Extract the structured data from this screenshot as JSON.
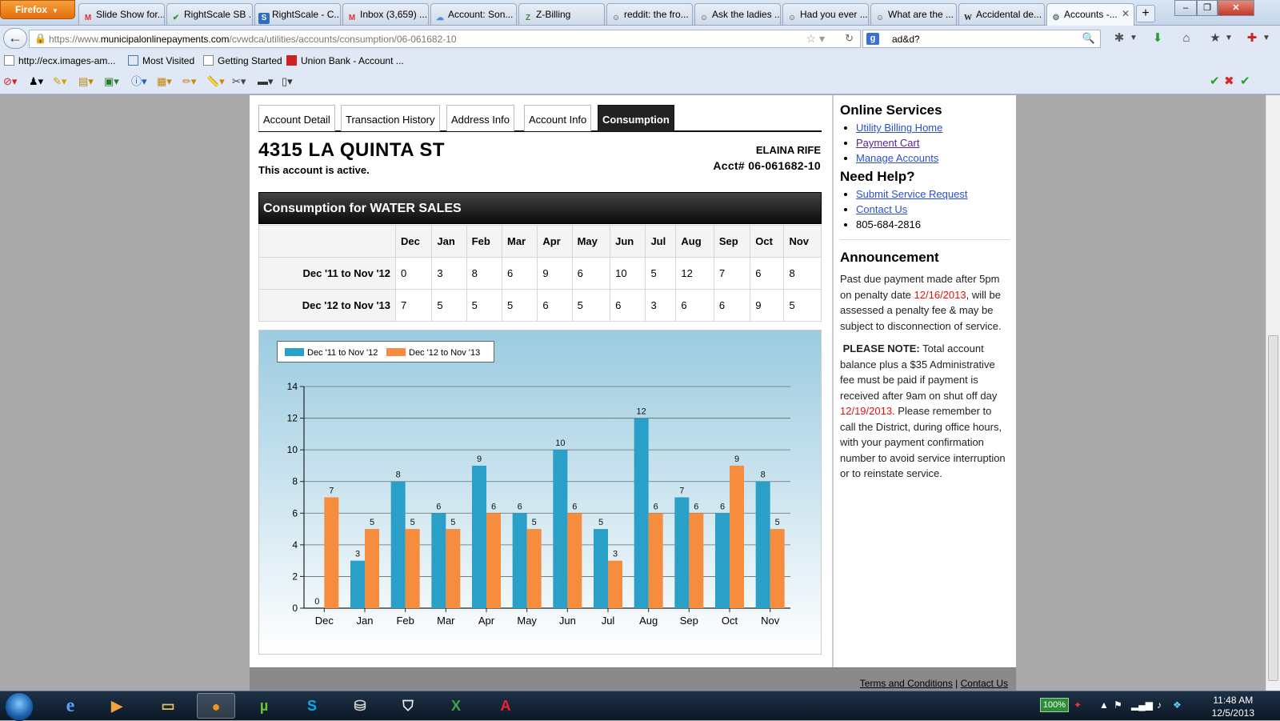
{
  "browser": {
    "menu_button": "Firefox",
    "tabs": [
      {
        "label": "Slide Show for...",
        "icon": "gmail-icon"
      },
      {
        "label": "RightScale SB ...",
        "icon": "checkmark-icon"
      },
      {
        "label": "RightScale - C...",
        "icon": "rightscale-icon"
      },
      {
        "label": "Inbox (3,659) ...",
        "icon": "gmail-icon"
      },
      {
        "label": "Account: Son...",
        "icon": "cloud-icon"
      },
      {
        "label": "Z-Billing",
        "icon": "zbilling-icon"
      },
      {
        "label": "reddit: the fro...",
        "icon": "reddit-icon"
      },
      {
        "label": "Ask the ladies ...",
        "icon": "reddit-icon"
      },
      {
        "label": "Had you ever ...",
        "icon": "reddit-icon"
      },
      {
        "label": "What are the ...",
        "icon": "reddit-icon"
      },
      {
        "label": "Accidental de...",
        "icon": "wikipedia-icon"
      },
      {
        "label": "Accounts -...",
        "icon": "gear-icon"
      }
    ],
    "url_prefix": "https://www.",
    "url_host": "municipalonlinepayments.com",
    "url_path": "/cvwdca/utilities/accounts/consumption/06-061682-10",
    "search_value": "ad&d?",
    "bookmarks": [
      "http://ecx.images-am...",
      "Most Visited",
      "Getting Started",
      "Union Bank - Account ..."
    ]
  },
  "page": {
    "tabs": [
      "Account Detail",
      "Transaction History",
      "Address Info",
      "Account Info",
      "Consumption"
    ],
    "address": "4315 LA QUINTA ST",
    "status": "This account is active.",
    "owner": "ELAINA RIFE",
    "account_number": "Acct# 06-061682-10",
    "consumption_title": "Consumption for WATER SALES",
    "table": {
      "months": [
        "Dec",
        "Jan",
        "Feb",
        "Mar",
        "Apr",
        "May",
        "Jun",
        "Jul",
        "Aug",
        "Sep",
        "Oct",
        "Nov"
      ],
      "rows": [
        {
          "label": "Dec '11 to Nov '12",
          "values": [
            0,
            3,
            8,
            6,
            9,
            6,
            10,
            5,
            12,
            7,
            6,
            8
          ]
        },
        {
          "label": "Dec '12 to Nov '13",
          "values": [
            7,
            5,
            5,
            5,
            6,
            5,
            6,
            3,
            6,
            6,
            9,
            5
          ]
        }
      ]
    },
    "footer_terms": "Terms and Conditions",
    "footer_separator": "|",
    "footer_contact": "Contact Us"
  },
  "chart_data": {
    "type": "bar",
    "categories": [
      "Dec",
      "Jan",
      "Feb",
      "Mar",
      "Apr",
      "May",
      "Jun",
      "Jul",
      "Aug",
      "Sep",
      "Oct",
      "Nov"
    ],
    "series": [
      {
        "name": "Dec '11 to Nov '12",
        "values": [
          0,
          3,
          8,
          6,
          9,
          6,
          10,
          5,
          12,
          7,
          6,
          8
        ],
        "color": "#2aa0c8"
      },
      {
        "name": "Dec '12 to Nov '13",
        "values": [
          7,
          5,
          5,
          5,
          6,
          5,
          6,
          3,
          6,
          6,
          9,
          5
        ],
        "color": "#f68c3e"
      }
    ],
    "ylim": [
      0,
      14
    ],
    "yticks": [
      0,
      2,
      4,
      6,
      8,
      10,
      12,
      14
    ],
    "grid": true,
    "legend": "top-left",
    "data_labels": true
  },
  "sidebar": {
    "online_services_title": "Online Services",
    "online_services": [
      "Utility Billing Home",
      "Payment Cart",
      "Manage Accounts"
    ],
    "help_title": "Need Help?",
    "help_links": [
      "Submit Service Request",
      "Contact Us"
    ],
    "phone": "805-684-2816",
    "announcement_title": "Announcement",
    "announcement_p1_a": "Past due payment made after 5pm on penalty date ",
    "announcement_p1_date": "12/16/2013",
    "announcement_p1_b": ", will be assessed a penalty fee & may be subject to disconnection of service.",
    "announcement_p2_label": "PLEASE NOTE:",
    "announcement_p2_a": " Total account balance plus a $35 Administrative fee must be paid if payment is received after 9am on shut off day ",
    "announcement_p2_date": "12/19/2013",
    "announcement_p2_b": ".  Please remember to call the District, during office hours, with your payment confirmation number to avoid service interruption or to reinstate service."
  },
  "taskbar": {
    "battery": "100%",
    "time": "11:48 AM",
    "date": "12/5/2013"
  }
}
